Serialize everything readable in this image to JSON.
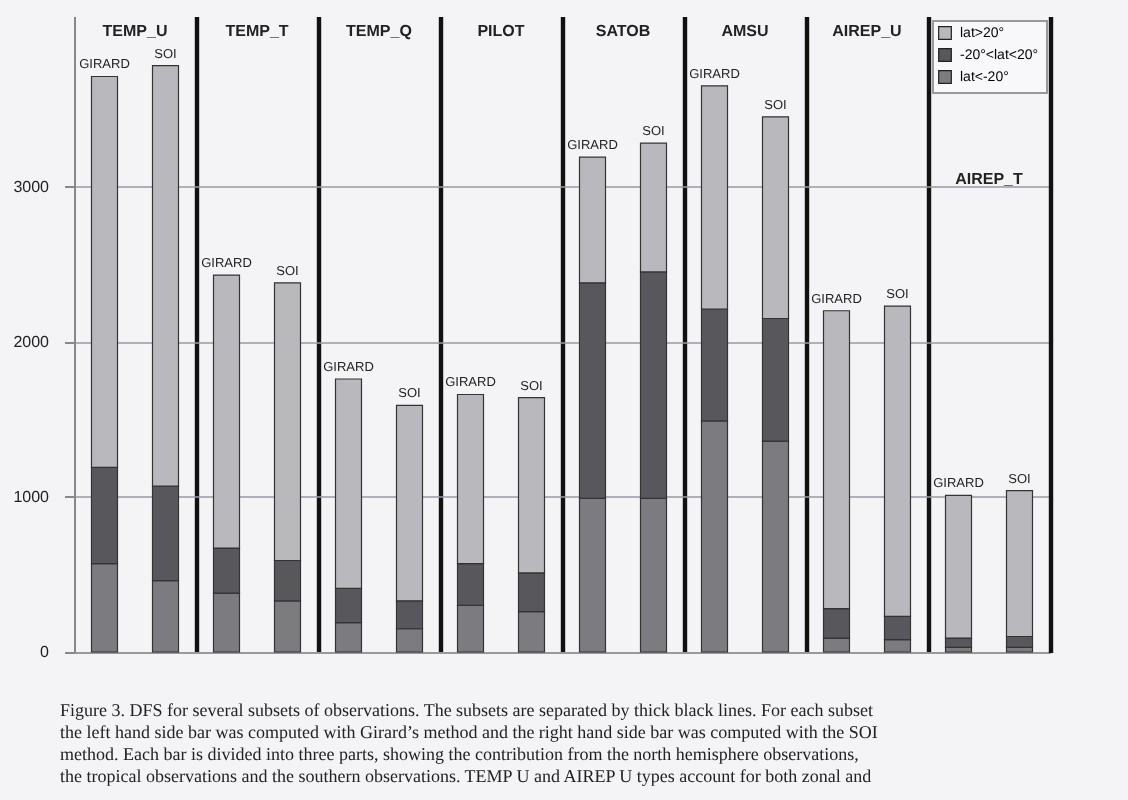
{
  "chart_data": {
    "type": "bar",
    "categories": [
      "GIRARD",
      "SOI",
      "GIRARD",
      "SOI",
      "GIRARD",
      "SOI",
      "GIRARD",
      "SOI",
      "GIRARD",
      "SOI",
      "GIRARD",
      "SOI",
      "GIRARD",
      "SOI",
      "GIRARD",
      "SOI"
    ],
    "stacked": true,
    "ylim": [
      0,
      4100
    ],
    "yticks": [
      0,
      1000,
      2000,
      3000
    ],
    "grid": "y",
    "tick_labels": "y",
    "legend": "top right",
    "annotations": [
      "TEMP_U",
      "TEMP_T",
      "TEMP_Q",
      "PILOT",
      "SATOB",
      "AMSU",
      "AIREP_U",
      "AIREP_T",
      "Figure 3.    DFS for several subsets of observations. The subsets are separated by thick black lines. For each subset",
      "the left hand side bar was computed with Girard’s method and the right hand side bar was computed with the SOI",
      "method. Each bar is divided into three parts, showing the contribution from the north hemisphere observations,",
      "the tropical observations and the southern observations. TEMP U and AIREP U types account for both zonal and"
    ],
    "series": [
      {
        "name": "lat<-20°",
        "color": "#7c7c80",
        "values": [
          570,
          460,
          380,
          330,
          190,
          150,
          300,
          260,
          990,
          990,
          1490,
          1360,
          90,
          80,
          30,
          30
        ]
      },
      {
        "name": "-20°<lat<20°",
        "color": "#58585c",
        "values": [
          620,
          610,
          290,
          260,
          220,
          180,
          270,
          250,
          1390,
          1460,
          720,
          790,
          190,
          150,
          60,
          70
        ]
      },
      {
        "name": "lat>20°",
        "color": "#b9b9bd",
        "values": [
          2520,
          2710,
          1760,
          1790,
          1350,
          1260,
          1090,
          1130,
          810,
          830,
          1440,
          1300,
          1920,
          2000,
          920,
          940
        ]
      }
    ]
  }
}
